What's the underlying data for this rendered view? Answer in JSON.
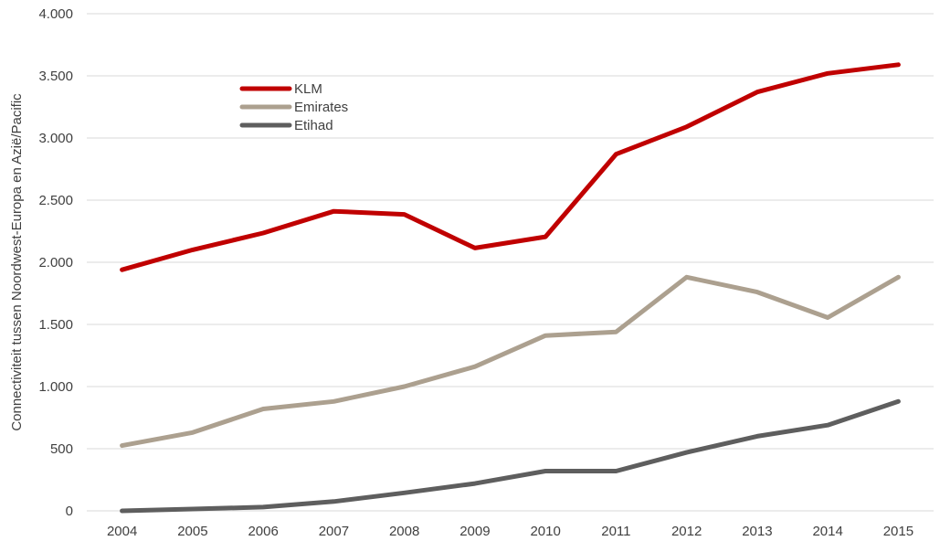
{
  "chart_data": {
    "type": "line",
    "ylabel": "Connectiviteit tussen Noordwest-Europa  en Azië/Pacific",
    "ylim": [
      0,
      4000
    ],
    "yticks": [
      0,
      500,
      1000,
      1500,
      2000,
      2500,
      3000,
      3500,
      4000
    ],
    "ytick_labels": [
      "0",
      "500",
      "1.000",
      "1.500",
      "2.000",
      "2.500",
      "3.000",
      "3.500",
      "4.000"
    ],
    "categories": [
      "2004",
      "2005",
      "2006",
      "2007",
      "2008",
      "2009",
      "2010",
      "2011",
      "2012",
      "2013",
      "2014",
      "2015"
    ],
    "grid": "horizontal",
    "legend_position": "top-left",
    "series": [
      {
        "name": "KLM",
        "color": "#c00000",
        "values": [
          1940,
          2100,
          2235,
          2410,
          2385,
          2115,
          2205,
          2870,
          3090,
          3370,
          3520,
          3590
        ]
      },
      {
        "name": "Emirates",
        "color": "#aca08f",
        "values": [
          525,
          630,
          820,
          880,
          1000,
          1160,
          1410,
          1440,
          1880,
          1760,
          1555,
          1880
        ]
      },
      {
        "name": "Etihad",
        "color": "#5e5e5e",
        "values": [
          0,
          15,
          30,
          75,
          145,
          220,
          320,
          320,
          470,
          600,
          690,
          880
        ]
      }
    ]
  }
}
